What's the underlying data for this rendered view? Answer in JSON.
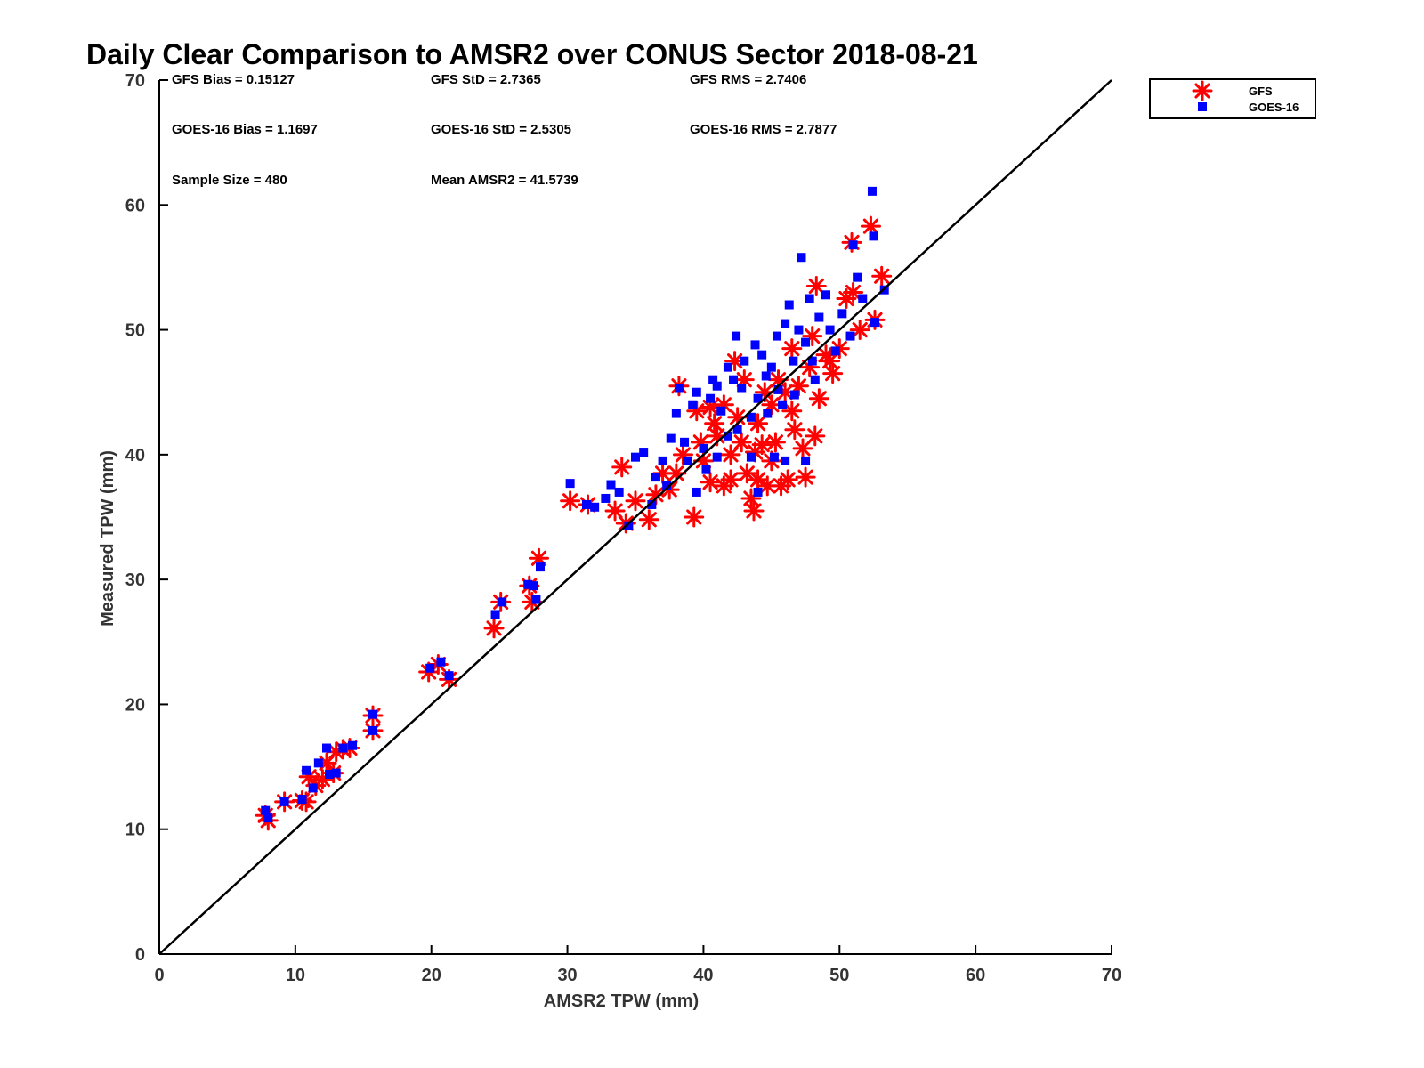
{
  "chart_data": {
    "type": "scatter",
    "title": "Daily Clear Comparison to AMSR2 over CONUS Sector 2018-08-21",
    "xlabel": "AMSR2 TPW (mm)",
    "ylabel": "Measured TPW (mm)",
    "xlim": [
      0,
      70
    ],
    "ylim": [
      0,
      70
    ],
    "xticks": [
      0,
      10,
      20,
      30,
      40,
      50,
      60,
      70
    ],
    "yticks": [
      0,
      10,
      20,
      30,
      40,
      50,
      60,
      70
    ],
    "grid": false,
    "legend_position": "outside-top-right",
    "reference_line": {
      "x": [
        0,
        70
      ],
      "y": [
        0,
        70
      ],
      "color": "#000000"
    },
    "annotations": [
      "GFS Bias = 0.15127",
      "GFS StD = 2.7365",
      "GFS RMS = 2.7406",
      "GOES-16 Bias = 1.1697",
      "GOES-16 StD = 2.5305",
      "GOES-16 RMS = 2.7877",
      "Sample Size = 480",
      "Mean AMSR2 = 41.5739"
    ],
    "series": [
      {
        "name": "GFS",
        "marker": "asterisk",
        "color": "#ff0000",
        "points": [
          [
            7.8,
            11.1
          ],
          [
            8.0,
            10.7
          ],
          [
            9.2,
            12.2
          ],
          [
            10.5,
            12.3
          ],
          [
            10.8,
            12.2
          ],
          [
            11.0,
            14.2
          ],
          [
            11.5,
            13.5
          ],
          [
            12.0,
            14.0
          ],
          [
            12.3,
            15.3
          ],
          [
            12.8,
            14.5
          ],
          [
            13.0,
            16.2
          ],
          [
            13.5,
            16.4
          ],
          [
            14.0,
            16.5
          ],
          [
            15.7,
            17.9
          ],
          [
            15.7,
            19.1
          ],
          [
            19.8,
            22.6
          ],
          [
            20.5,
            23.2
          ],
          [
            21.3,
            22.0
          ],
          [
            24.6,
            26.1
          ],
          [
            25.1,
            28.2
          ],
          [
            27.2,
            29.5
          ],
          [
            27.4,
            28.2
          ],
          [
            27.9,
            31.7
          ],
          [
            30.2,
            36.3
          ],
          [
            31.5,
            36.0
          ],
          [
            33.5,
            35.5
          ],
          [
            34.0,
            39.0
          ],
          [
            34.3,
            34.5
          ],
          [
            35.0,
            36.3
          ],
          [
            36.0,
            34.8
          ],
          [
            36.5,
            36.8
          ],
          [
            37.0,
            38.5
          ],
          [
            37.5,
            37.2
          ],
          [
            38.0,
            38.5
          ],
          [
            38.2,
            45.5
          ],
          [
            39.3,
            35.0
          ],
          [
            39.5,
            43.5
          ],
          [
            40.0,
            39.5
          ],
          [
            40.5,
            37.8
          ],
          [
            41.0,
            41.5
          ],
          [
            41.5,
            37.5
          ],
          [
            42.0,
            40.0
          ],
          [
            42.3,
            47.5
          ],
          [
            42.8,
            41.0
          ],
          [
            43.2,
            38.5
          ],
          [
            43.5,
            36.5
          ],
          [
            43.7,
            35.5
          ],
          [
            44.0,
            42.5
          ],
          [
            44.3,
            40.8
          ],
          [
            44.7,
            37.5
          ],
          [
            45.0,
            44.0
          ],
          [
            45.3,
            41.0
          ],
          [
            45.7,
            37.5
          ],
          [
            46.0,
            45.0
          ],
          [
            46.2,
            38.0
          ],
          [
            46.5,
            43.5
          ],
          [
            46.7,
            42.0
          ],
          [
            47.0,
            45.5
          ],
          [
            47.3,
            40.5
          ],
          [
            47.5,
            38.2
          ],
          [
            47.8,
            47.0
          ],
          [
            48.2,
            41.5
          ],
          [
            48.3,
            53.5
          ],
          [
            48.5,
            44.5
          ],
          [
            49.0,
            48.0
          ],
          [
            49.5,
            46.5
          ],
          [
            50.0,
            48.5
          ],
          [
            50.5,
            52.5
          ],
          [
            51.0,
            53.0
          ],
          [
            51.5,
            50.0
          ],
          [
            50.9,
            57.0
          ],
          [
            52.3,
            58.3
          ],
          [
            52.6,
            50.8
          ],
          [
            53.1,
            54.3
          ],
          [
            43.0,
            46.0
          ],
          [
            44.5,
            45.0
          ],
          [
            45.5,
            46.0
          ],
          [
            41.5,
            44.0
          ],
          [
            42.5,
            43.0
          ],
          [
            40.8,
            42.5
          ],
          [
            39.8,
            41.0
          ],
          [
            38.5,
            40.0
          ],
          [
            46.5,
            48.5
          ],
          [
            48.0,
            49.5
          ],
          [
            49.3,
            47.5
          ],
          [
            44.0,
            38.0
          ],
          [
            45.0,
            39.5
          ],
          [
            42.0,
            38.0
          ],
          [
            40.5,
            43.8
          ],
          [
            43.8,
            40.2
          ]
        ]
      },
      {
        "name": "GOES-16",
        "marker": "square",
        "color": "#0000ff",
        "points": [
          [
            7.8,
            11.5
          ],
          [
            8.0,
            10.9
          ],
          [
            9.2,
            12.2
          ],
          [
            10.5,
            12.4
          ],
          [
            10.8,
            14.7
          ],
          [
            11.3,
            13.3
          ],
          [
            11.7,
            15.3
          ],
          [
            12.3,
            16.5
          ],
          [
            12.5,
            14.4
          ],
          [
            13.0,
            14.5
          ],
          [
            13.5,
            16.5
          ],
          [
            14.2,
            16.7
          ],
          [
            15.7,
            19.2
          ],
          [
            15.7,
            17.9
          ],
          [
            19.9,
            22.9
          ],
          [
            20.7,
            23.4
          ],
          [
            21.3,
            22.3
          ],
          [
            24.7,
            27.2
          ],
          [
            25.2,
            28.2
          ],
          [
            27.1,
            29.6
          ],
          [
            27.5,
            29.5
          ],
          [
            27.7,
            28.4
          ],
          [
            28.0,
            31.0
          ],
          [
            30.2,
            37.7
          ],
          [
            31.4,
            36.0
          ],
          [
            32.0,
            35.8
          ],
          [
            32.8,
            36.5
          ],
          [
            33.2,
            37.6
          ],
          [
            33.8,
            37.0
          ],
          [
            34.5,
            34.3
          ],
          [
            35.0,
            39.8
          ],
          [
            35.6,
            40.2
          ],
          [
            36.2,
            36.0
          ],
          [
            36.5,
            38.2
          ],
          [
            37.0,
            39.5
          ],
          [
            37.6,
            41.3
          ],
          [
            38.0,
            43.3
          ],
          [
            38.2,
            45.3
          ],
          [
            38.6,
            41.0
          ],
          [
            39.2,
            44.0
          ],
          [
            39.5,
            45.0
          ],
          [
            40.0,
            40.5
          ],
          [
            40.5,
            44.5
          ],
          [
            41.0,
            45.5
          ],
          [
            41.3,
            43.5
          ],
          [
            41.8,
            47.0
          ],
          [
            42.2,
            46.0
          ],
          [
            42.4,
            49.5
          ],
          [
            42.8,
            45.3
          ],
          [
            43.0,
            47.5
          ],
          [
            43.5,
            43.0
          ],
          [
            44.0,
            44.5
          ],
          [
            44.3,
            48.0
          ],
          [
            44.6,
            46.3
          ],
          [
            45.0,
            47.0
          ],
          [
            45.4,
            49.5
          ],
          [
            45.8,
            44.0
          ],
          [
            46.0,
            50.5
          ],
          [
            46.3,
            52.0
          ],
          [
            46.6,
            47.5
          ],
          [
            47.0,
            50.0
          ],
          [
            47.2,
            55.8
          ],
          [
            47.5,
            49.0
          ],
          [
            47.8,
            52.5
          ],
          [
            48.2,
            46.0
          ],
          [
            48.5,
            51.0
          ],
          [
            49.0,
            52.8
          ],
          [
            49.3,
            50.0
          ],
          [
            49.7,
            48.3
          ],
          [
            50.2,
            51.3
          ],
          [
            50.8,
            49.5
          ],
          [
            51.0,
            56.8
          ],
          [
            51.3,
            54.2
          ],
          [
            51.7,
            52.5
          ],
          [
            52.4,
            61.1
          ],
          [
            52.5,
            57.5
          ],
          [
            52.6,
            50.6
          ],
          [
            53.3,
            53.2
          ],
          [
            44.0,
            37.0
          ],
          [
            45.2,
            39.8
          ],
          [
            46.0,
            39.5
          ],
          [
            47.5,
            39.5
          ],
          [
            43.5,
            39.8
          ],
          [
            42.5,
            42.0
          ],
          [
            41.0,
            39.8
          ],
          [
            40.2,
            38.8
          ],
          [
            39.5,
            37.0
          ],
          [
            40.7,
            46.0
          ],
          [
            43.8,
            48.8
          ],
          [
            45.5,
            45.2
          ],
          [
            46.7,
            44.8
          ],
          [
            48.0,
            47.5
          ],
          [
            37.3,
            37.5
          ],
          [
            38.8,
            39.5
          ],
          [
            41.8,
            41.5
          ],
          [
            44.7,
            43.3
          ]
        ]
      }
    ]
  }
}
